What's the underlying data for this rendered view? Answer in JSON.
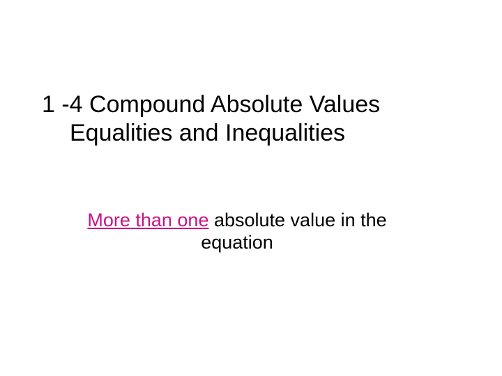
{
  "slide": {
    "title_line1": "1 -4  Compound Absolute Values",
    "title_line2": "Equalities and Inequalities",
    "subtitle_highlight": "More than one",
    "subtitle_rest": " absolute value in the equation"
  },
  "styling": {
    "background_color": "#ffffff",
    "title_color": "#000000",
    "title_fontsize": 34,
    "subtitle_color": "#000000",
    "subtitle_fontsize": 27,
    "highlight_color": "#c71585",
    "font_family": "Arial"
  }
}
